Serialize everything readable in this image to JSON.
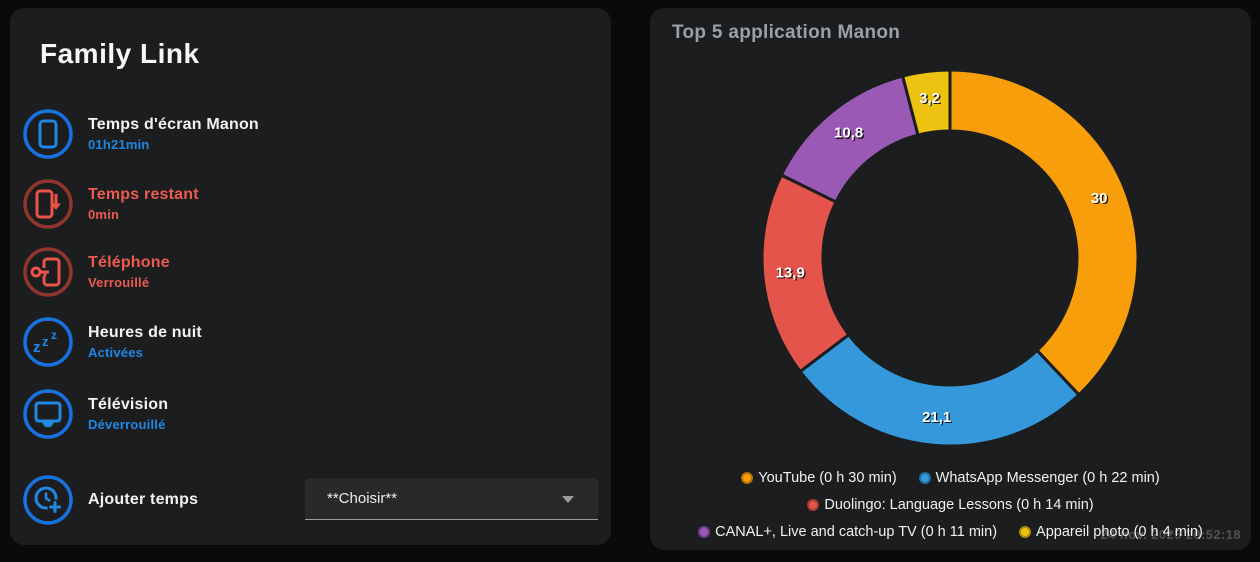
{
  "family_card": {
    "title": "Family Link",
    "items": [
      {
        "label": "Temps d'écran Manon",
        "value": "01h21min",
        "state_color": "blue",
        "icon": "cellphone-icon"
      },
      {
        "label": "Temps restant",
        "value": "0min",
        "state_color": "red",
        "icon": "cellphone-arrow-down-icon"
      },
      {
        "label": "Téléphone",
        "value": "Verrouillé",
        "state_color": "red",
        "icon": "cellphone-key-icon"
      },
      {
        "label": "Heures de nuit",
        "value": "Activées",
        "state_color": "blue",
        "icon": "sleep-icon"
      },
      {
        "label": "Télévision",
        "value": "Déverrouillé",
        "state_color": "blue",
        "icon": "television-icon"
      },
      {
        "label": "Ajouter temps",
        "value": "",
        "state_color": "blue",
        "icon": "clock-plus-icon"
      }
    ],
    "add_time_select": {
      "value": "**Choisir**"
    }
  },
  "top_apps_card": {
    "title": "Top 5 application Manon",
    "timestamp": "24 nov. 2025 20:52:18"
  },
  "chart_data": {
    "type": "pie",
    "subtype": "donut",
    "title": "Top 5 application Manon",
    "labels": [
      "YouTube (0 h 30 min)",
      "WhatsApp Messenger (0 h 22 min)",
      "Duolingo: Language Lessons (0 h 14 min)",
      "CANAL+, Live and catch-up TV (0 h 11 min)",
      "Appareil photo (0 h 4 min)"
    ],
    "values": [
      30,
      21.1,
      13.9,
      10.8,
      3.2
    ],
    "value_labels": [
      "30",
      "21,1",
      "13,9",
      "10,8",
      "3,2"
    ],
    "colors": [
      "#f99e0b",
      "#3498db",
      "#e4544a",
      "#9b59b6",
      "#eec211"
    ],
    "legend_rows": [
      [
        0,
        1
      ],
      [
        2
      ],
      [
        3,
        4
      ]
    ],
    "start_angle_deg": 0,
    "direction": "clockwise",
    "legend_position": "bottom",
    "hole_ratio": 0.675
  },
  "colors": {
    "accent_blue": "#1e88e5",
    "accent_red": "#ed5a4f",
    "blue_ring": "#1772e0",
    "red_ring": "#8e362c",
    "card_bg": "#1c1d1f",
    "title_gray": "#9ba0a5"
  }
}
